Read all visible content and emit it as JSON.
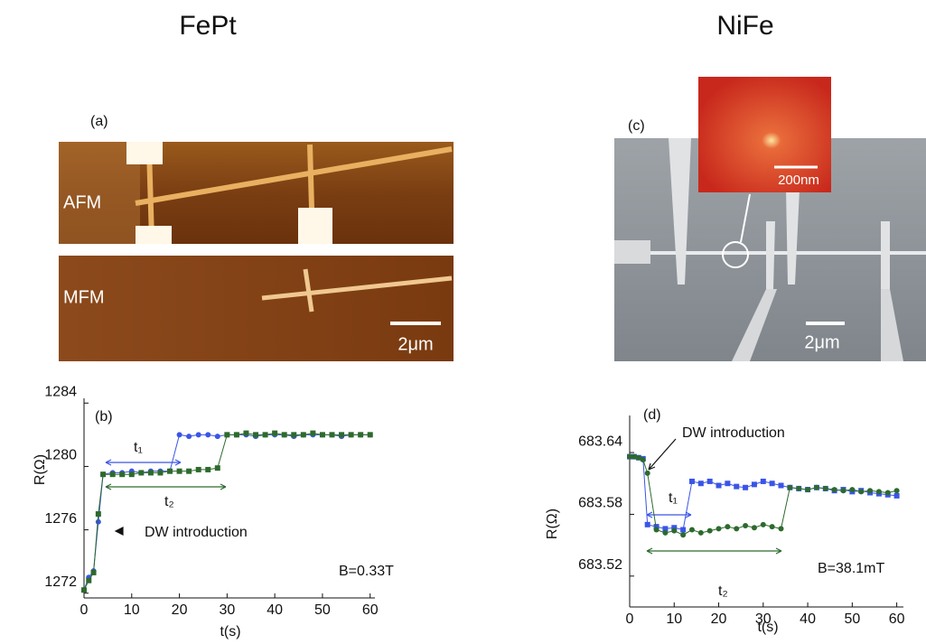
{
  "headings": [
    "FePt",
    "NiFe"
  ],
  "panels": {
    "a": {
      "label": "(a)",
      "afm": "AFM",
      "mfm": "MFM",
      "scale": "2μm"
    },
    "c": {
      "label": "(c)",
      "scale": "2μm",
      "inset_scale": "200nm"
    }
  },
  "chart_data": [
    {
      "type": "line",
      "title": "(b)",
      "x_label": "t(s)",
      "y_label": "R(Ω)",
      "x": [
        0,
        1,
        2,
        3,
        4,
        6,
        8,
        10,
        12,
        14,
        16,
        18,
        20,
        22,
        24,
        26,
        28,
        30,
        32,
        34,
        36,
        38,
        40,
        42,
        44,
        46,
        48,
        50,
        52,
        54,
        56,
        58,
        60
      ],
      "series": [
        {
          "name": "t₁",
          "color": "#3a55e6",
          "marker": "circle",
          "values": [
            1272.2,
            1273,
            1273.4,
            1276.5,
            1279.5,
            1279.6,
            1279.6,
            1279.7,
            1279.6,
            1279.7,
            1279.7,
            1279.7,
            1282,
            1281.9,
            1282,
            1282,
            1281.9,
            1282,
            1282,
            1282,
            1281.9,
            1282,
            1282,
            1282,
            1281.9,
            1282,
            1282,
            1282,
            1282,
            1281.9,
            1282,
            1282,
            1282
          ]
        },
        {
          "name": "t₂",
          "color": "#2d6a2d",
          "marker": "square",
          "values": [
            1272.2,
            1272.8,
            1273.3,
            1277,
            1279.5,
            1279.5,
            1279.5,
            1279.5,
            1279.6,
            1279.6,
            1279.6,
            1279.7,
            1279.7,
            1279.7,
            1279.8,
            1279.8,
            1279.9,
            1282,
            1282,
            1282.1,
            1282,
            1282,
            1282.1,
            1282,
            1282,
            1282,
            1282.1,
            1282,
            1282,
            1282,
            1282,
            1282,
            1282
          ]
        }
      ],
      "annotations": [
        "t₁",
        "t₂",
        "DW introduction",
        "B=0.33T"
      ],
      "xlim": [
        0,
        61
      ],
      "xticks": [
        0,
        10,
        20,
        30,
        40,
        50,
        60
      ],
      "ylim": [
        1271.7,
        1284.3
      ],
      "yticks": [
        1272,
        1276,
        1280,
        1284
      ]
    },
    {
      "type": "line",
      "title": "(d)",
      "x_label": "t(s)",
      "y_label": "R(Ω)",
      "x": [
        0,
        1,
        2,
        3,
        4,
        6,
        8,
        10,
        12,
        14,
        16,
        18,
        20,
        22,
        24,
        26,
        28,
        30,
        32,
        34,
        36,
        38,
        40,
        42,
        44,
        46,
        48,
        50,
        52,
        54,
        56,
        58,
        60
      ],
      "series": [
        {
          "name": "t₁",
          "color": "#3a55e6",
          "marker": "square",
          "values": [
            683.636,
            683.636,
            683.635,
            683.634,
            683.57,
            683.568,
            683.566,
            683.567,
            683.565,
            683.612,
            683.61,
            683.612,
            683.608,
            683.61,
            683.607,
            683.606,
            683.609,
            683.612,
            683.61,
            683.608,
            683.606,
            683.605,
            683.604,
            683.606,
            683.605,
            683.603,
            683.604,
            683.602,
            683.603,
            683.601,
            683.6,
            683.599,
            683.598
          ]
        },
        {
          "name": "t₂",
          "color": "#2d6a2d",
          "marker": "circle",
          "values": [
            683.636,
            683.636,
            683.635,
            683.633,
            683.62,
            683.565,
            683.562,
            683.564,
            683.56,
            683.565,
            683.562,
            683.564,
            683.566,
            683.568,
            683.566,
            683.569,
            683.567,
            683.57,
            683.568,
            683.566,
            683.606,
            683.605,
            683.604,
            683.606,
            683.605,
            683.604,
            683.603,
            683.604,
            683.602,
            683.603,
            683.602,
            683.601,
            683.603
          ]
        }
      ],
      "annotations": [
        "t₁",
        "t₂",
        "DW introduction",
        "B=38.1mT"
      ],
      "xlim": [
        0,
        61.5
      ],
      "xticks": [
        0,
        10,
        20,
        30,
        40,
        50,
        60
      ],
      "ylim": [
        683.49,
        683.676
      ],
      "yticks": [
        683.52,
        683.58,
        683.64
      ]
    }
  ]
}
